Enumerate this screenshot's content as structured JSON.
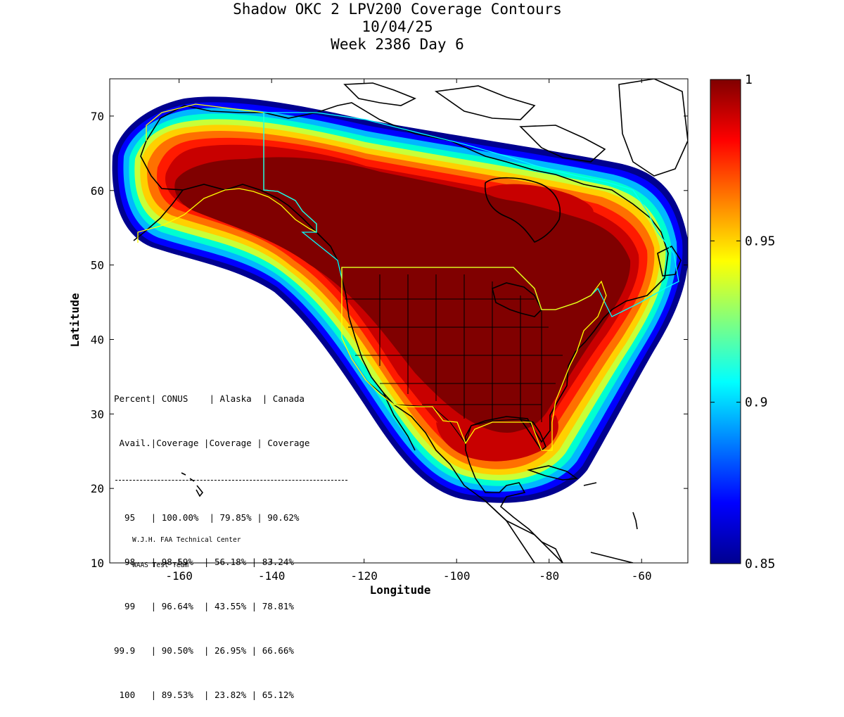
{
  "title": {
    "line1": "Shadow OKC 2 LPV200 Coverage Contours",
    "line2": "10/04/25",
    "line3": "Week 2386 Day 6"
  },
  "axes": {
    "xlabel": "Longitude",
    "ylabel": "Latitude",
    "xlim": [
      -175,
      -50
    ],
    "ylim": [
      10,
      75
    ],
    "xticks": [
      "-160",
      "-140",
      "-120",
      "-100",
      "-80",
      "-60"
    ],
    "yticks": [
      "70",
      "60",
      "50",
      "40",
      "30",
      "20",
      "10"
    ]
  },
  "colorbar": {
    "min": 0.85,
    "max": 1,
    "ticks": [
      "1",
      "0.95",
      "0.9",
      "0.85"
    ]
  },
  "table": {
    "header1": "Percent| CONUS    | Alaska  | Canada",
    "header2": " Avail.|Coverage |Coverage | Coverage",
    "rows": [
      "  95   | 100.00%  | 79.85% | 90.62%",
      "  98   | 98.59%  | 56.18% | 83.24%",
      "  99   | 96.64%  | 43.55% | 78.81%",
      "99.9   | 90.50%  | 26.95% | 66.66%",
      " 100   | 89.53%  | 23.82% | 65.12%"
    ]
  },
  "credit": {
    "line1": "W.J.H. FAA Technical Center",
    "line2": "WAAS Test Team"
  },
  "chart_data": {
    "type": "heatmap",
    "title": "Shadow OKC 2 LPV200 Coverage Contours",
    "xlabel": "Longitude",
    "ylabel": "Latitude",
    "xlim": [
      -175,
      -50
    ],
    "ylim": [
      10,
      75
    ],
    "colorscale": "jet",
    "value_range": [
      0.85,
      1
    ],
    "coverage_table": [
      {
        "percent": "95",
        "conus": "100.00%",
        "alaska": "79.85%",
        "canada": "90.62%"
      },
      {
        "percent": "98",
        "conus": "98.59%",
        "alaska": "56.18%",
        "canada": "83.24%"
      },
      {
        "percent": "99",
        "conus": "96.64%",
        "alaska": "43.55%",
        "canada": "78.81%"
      },
      {
        "percent": "99.9",
        "conus": "90.50%",
        "alaska": "26.95%",
        "canada": "66.66%"
      },
      {
        "percent": "100",
        "conus": "89.53%",
        "alaska": "23.82%",
        "canada": "65.12%"
      }
    ]
  }
}
